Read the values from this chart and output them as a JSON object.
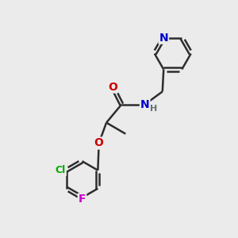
{
  "background_color": "#ebebeb",
  "bond_color": "#2d2d2d",
  "bond_width": 1.8,
  "atom_colors": {
    "N": "#0000cc",
    "O": "#cc0000",
    "Cl": "#00aa00",
    "F": "#cc00cc",
    "C": "#2d2d2d",
    "H": "#607070"
  },
  "font_size": 10,
  "fig_size": [
    3.0,
    3.0
  ],
  "dpi": 100,
  "bg": "#ebebeb"
}
